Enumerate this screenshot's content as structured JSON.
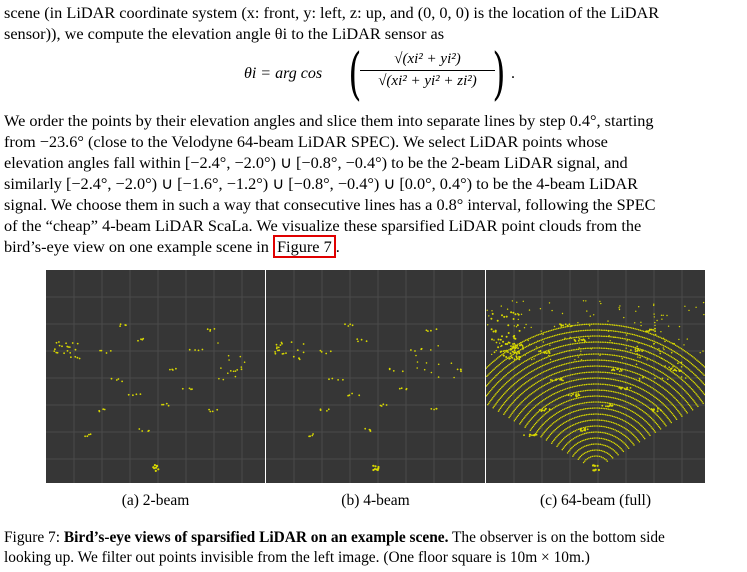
{
  "top_lines": [
    "scene (in LiDAR coordinate system (x: front, y: left, z: up, and (0, 0, 0) is the location of the LiDAR",
    "sensor)), we compute the elevation angle θi to the LiDAR sensor as"
  ],
  "equation": {
    "lhs": "θi = arg cos",
    "numerator": "√(xi² + yi²)",
    "denominator": "√(xi² + yi² + zi²)",
    "end": "."
  },
  "body_lines": [
    "We order the points by their elevation angles and slice them into separate lines by step 0.4°, starting",
    "from −23.6° (close to the Velodyne 64-beam LiDAR SPEC). We select LiDAR points whose",
    "elevation angles fall within [−2.4°, −2.0°) ∪ [−0.8°, −0.4°) to be the 2-beam LiDAR signal, and",
    "similarly [−2.4°, −2.0°) ∪ [−1.6°, −1.2°) ∪ [−0.8°, −0.4°) ∪ [0.0°, 0.4°) to be the 4-beam LiDAR",
    "signal. We choose them in such a way that consecutive lines has a 0.8° interval, following the SPEC",
    "of the “cheap” 4-beam LiDAR ScaLa. We visualize these sparsified LiDAR point clouds from the"
  ],
  "last_line_prefix": "bird’s-eye view on one example scene in ",
  "figure_ref": "Figure 7",
  "last_line_suffix": ".",
  "panels": [
    {
      "caption": "(a) 2-beam"
    },
    {
      "caption": "(b) 4-beam"
    },
    {
      "caption": "(c) 64-beam (full)"
    }
  ],
  "figure_caption": {
    "label": "Figure 7: ",
    "bold": "Bird’s-eye views of sparsified LiDAR on an example scene.",
    "rest1": " The observer is on the bottom side",
    "line2": "looking up. We filter out points invisible from the left image. (One floor square is 10m × 10m.)"
  },
  "colors": {
    "point": "#d8d800",
    "panel_bg": "#363636",
    "grid": "#4a4a4a",
    "ref_box": "#e00000"
  }
}
